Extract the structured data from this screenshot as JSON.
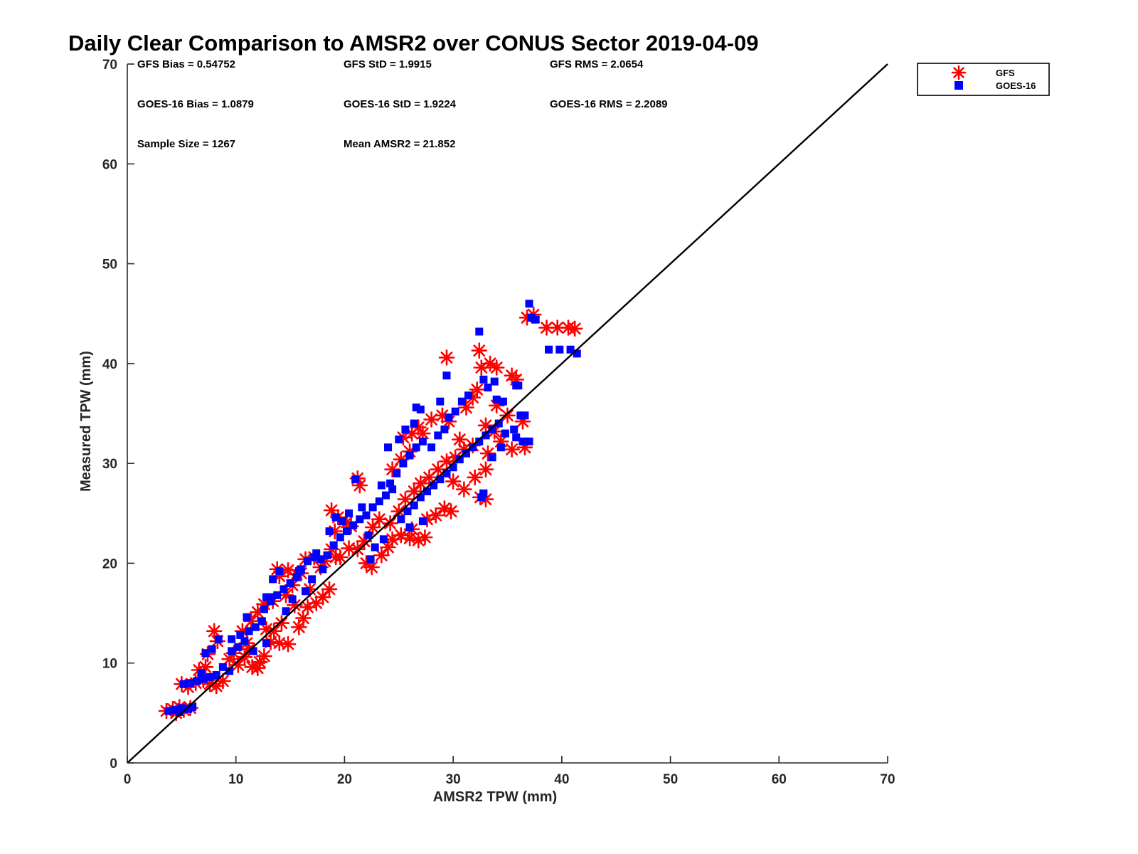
{
  "chart_data": {
    "type": "scatter",
    "title": "Daily Clear Comparison to AMSR2 over CONUS Sector 2019-04-09",
    "xlabel": "AMSR2 TPW (mm)",
    "ylabel": "Measured TPW (mm)",
    "xlim": [
      0,
      70
    ],
    "ylim": [
      0,
      70
    ],
    "xticks": [
      "0",
      "10",
      "20",
      "30",
      "40",
      "50",
      "60",
      "70"
    ],
    "yticks": [
      "0",
      "10",
      "20",
      "30",
      "40",
      "50",
      "60",
      "70"
    ],
    "grid": false,
    "legend_position": "outside-top-right",
    "reference_line": {
      "from": [
        0,
        0
      ],
      "to": [
        70,
        70
      ]
    },
    "stats": [
      [
        "GFS Bias = 0.54752",
        "GFS StD = 1.9915",
        "GFS RMS = 2.0654"
      ],
      [
        "GOES-16 Bias = 1.0879",
        "GOES-16 StD = 1.9224",
        "GOES-16 RMS = 2.2089"
      ],
      [
        "Sample Size = 1267",
        "Mean AMSR2 = 21.852"
      ]
    ],
    "series": [
      {
        "name": "GFS",
        "marker": "asterisk",
        "color": "#ff0000",
        "points": [
          [
            3.6,
            5.2
          ],
          [
            4.2,
            5.4
          ],
          [
            4.8,
            5.6
          ],
          [
            5.2,
            5.3
          ],
          [
            5.8,
            5.5
          ],
          [
            4.5,
            5.0
          ],
          [
            5.0,
            7.9
          ],
          [
            5.6,
            7.6
          ],
          [
            6.3,
            8.0
          ],
          [
            7.0,
            8.3
          ],
          [
            7.6,
            7.9
          ],
          [
            8.2,
            7.7
          ],
          [
            8.8,
            8.2
          ],
          [
            6.6,
            9.3
          ],
          [
            7.2,
            9.6
          ],
          [
            8.0,
            13.2
          ],
          [
            8.3,
            12.2
          ],
          [
            7.4,
            10.9
          ],
          [
            9.4,
            10.4
          ],
          [
            10.2,
            9.8
          ],
          [
            10.8,
            10.6
          ],
          [
            11.5,
            9.6
          ],
          [
            12.0,
            9.5
          ],
          [
            12.6,
            10.7
          ],
          [
            11.2,
            11.4
          ],
          [
            12.2,
            10.1
          ],
          [
            13.2,
            12.1
          ],
          [
            14.0,
            12.0
          ],
          [
            14.8,
            11.9
          ],
          [
            13.5,
            13.2
          ],
          [
            14.2,
            14.0
          ],
          [
            15.8,
            13.6
          ],
          [
            16.2,
            14.5
          ],
          [
            10.6,
            13.2
          ],
          [
            11.4,
            14.2
          ],
          [
            12.0,
            15.1
          ],
          [
            12.6,
            15.9
          ],
          [
            13.4,
            16.2
          ],
          [
            14.6,
            16.8
          ],
          [
            15.4,
            15.8
          ],
          [
            16.6,
            15.6
          ],
          [
            17.4,
            16.0
          ],
          [
            18.0,
            16.6
          ],
          [
            18.6,
            17.4
          ],
          [
            14.0,
            18.7
          ],
          [
            14.8,
            19.3
          ],
          [
            15.6,
            18.9
          ],
          [
            16.4,
            20.4
          ],
          [
            17.2,
            20.6
          ],
          [
            18.2,
            20.2
          ],
          [
            19.2,
            20.6
          ],
          [
            13.8,
            19.4
          ],
          [
            15.2,
            17.8
          ],
          [
            16.8,
            17.4
          ],
          [
            18.8,
            21.4
          ],
          [
            19.6,
            20.6
          ],
          [
            20.4,
            21.5
          ],
          [
            21.2,
            21.4
          ],
          [
            22.0,
            20.0
          ],
          [
            22.5,
            19.6
          ],
          [
            23.4,
            20.8
          ],
          [
            24.0,
            21.6
          ],
          [
            18.8,
            25.3
          ],
          [
            19.4,
            24.6
          ],
          [
            20.2,
            24.1
          ],
          [
            19.1,
            23.2
          ],
          [
            20.6,
            23.7
          ],
          [
            21.2,
            28.5
          ],
          [
            21.4,
            27.8
          ],
          [
            24.4,
            22.4
          ],
          [
            25.2,
            22.8
          ],
          [
            26.0,
            22.5
          ],
          [
            26.8,
            22.3
          ],
          [
            27.4,
            22.6
          ],
          [
            26.2,
            23.4
          ],
          [
            27.6,
            24.4
          ],
          [
            28.4,
            24.8
          ],
          [
            29.2,
            25.5
          ],
          [
            29.8,
            25.2
          ],
          [
            24.2,
            24.0
          ],
          [
            25.0,
            25.2
          ],
          [
            25.6,
            26.4
          ],
          [
            26.4,
            27.2
          ],
          [
            27.0,
            28.0
          ],
          [
            27.8,
            28.6
          ],
          [
            28.6,
            29.4
          ],
          [
            29.4,
            30.2
          ],
          [
            30.2,
            30.6
          ],
          [
            31.0,
            31.4
          ],
          [
            24.4,
            29.4
          ],
          [
            25.2,
            30.4
          ],
          [
            26.0,
            31.2
          ],
          [
            25.4,
            32.6
          ],
          [
            26.2,
            33.0
          ],
          [
            26.8,
            33.6
          ],
          [
            27.2,
            33.0
          ],
          [
            28.0,
            34.4
          ],
          [
            29.0,
            34.8
          ],
          [
            29.6,
            34.2
          ],
          [
            30.0,
            28.2
          ],
          [
            31.0,
            27.4
          ],
          [
            32.0,
            28.6
          ],
          [
            33.0,
            29.4
          ],
          [
            32.5,
            26.6
          ],
          [
            33.0,
            26.4
          ],
          [
            31.2,
            35.6
          ],
          [
            31.8,
            36.6
          ],
          [
            32.2,
            37.4
          ],
          [
            32.6,
            39.6
          ],
          [
            33.4,
            40.0
          ],
          [
            34.0,
            39.6
          ],
          [
            32.4,
            41.3
          ],
          [
            29.4,
            40.6
          ],
          [
            33.0,
            33.8
          ],
          [
            33.8,
            33.2
          ],
          [
            34.4,
            32.2
          ],
          [
            35.4,
            31.4
          ],
          [
            36.6,
            31.6
          ],
          [
            35.4,
            38.8
          ],
          [
            35.8,
            38.4
          ],
          [
            36.4,
            34.2
          ],
          [
            35.0,
            34.8
          ],
          [
            34.0,
            35.8
          ],
          [
            30.6,
            32.4
          ],
          [
            31.8,
            31.8
          ],
          [
            33.2,
            31.0
          ],
          [
            36.8,
            44.6
          ],
          [
            37.4,
            44.9
          ],
          [
            38.6,
            43.6
          ],
          [
            39.6,
            43.6
          ],
          [
            40.6,
            43.6
          ],
          [
            41.2,
            43.5
          ],
          [
            22.6,
            23.6
          ],
          [
            23.2,
            24.4
          ],
          [
            21.8,
            22.2
          ],
          [
            17.8,
            19.6
          ],
          [
            16.0,
            19.0
          ],
          [
            12.8,
            13.4
          ],
          [
            11.0,
            12.0
          ],
          [
            9.8,
            11.0
          ]
        ]
      },
      {
        "name": "GOES-16",
        "marker": "square",
        "color": "#0000ff",
        "points": [
          [
            3.8,
            5.2
          ],
          [
            4.4,
            5.3
          ],
          [
            5.0,
            5.5
          ],
          [
            5.6,
            5.4
          ],
          [
            6.0,
            5.6
          ],
          [
            4.8,
            5.1
          ],
          [
            5.2,
            7.9
          ],
          [
            5.8,
            8.0
          ],
          [
            6.4,
            8.2
          ],
          [
            7.0,
            8.4
          ],
          [
            7.6,
            8.6
          ],
          [
            8.2,
            8.8
          ],
          [
            6.8,
            9.0
          ],
          [
            7.2,
            11.0
          ],
          [
            7.8,
            11.4
          ],
          [
            8.4,
            12.4
          ],
          [
            8.8,
            9.6
          ],
          [
            9.4,
            9.2
          ],
          [
            9.6,
            11.2
          ],
          [
            10.2,
            11.6
          ],
          [
            10.8,
            12.2
          ],
          [
            11.2,
            13.2
          ],
          [
            11.8,
            13.6
          ],
          [
            12.4,
            14.2
          ],
          [
            10.4,
            12.8
          ],
          [
            11.6,
            11.2
          ],
          [
            12.8,
            12.0
          ],
          [
            12.6,
            15.4
          ],
          [
            13.2,
            16.2
          ],
          [
            13.8,
            16.8
          ],
          [
            14.4,
            17.4
          ],
          [
            15.0,
            18.0
          ],
          [
            15.6,
            18.6
          ],
          [
            14.0,
            19.2
          ],
          [
            13.4,
            18.4
          ],
          [
            12.8,
            16.6
          ],
          [
            16.0,
            19.4
          ],
          [
            16.6,
            20.2
          ],
          [
            17.2,
            20.6
          ],
          [
            17.8,
            20.4
          ],
          [
            18.4,
            20.8
          ],
          [
            16.4,
            17.2
          ],
          [
            17.0,
            18.4
          ],
          [
            18.0,
            19.4
          ],
          [
            15.2,
            16.4
          ],
          [
            14.6,
            15.2
          ],
          [
            19.0,
            21.8
          ],
          [
            19.6,
            22.6
          ],
          [
            20.2,
            23.2
          ],
          [
            20.8,
            23.8
          ],
          [
            21.4,
            24.4
          ],
          [
            19.2,
            24.6
          ],
          [
            19.8,
            24.2
          ],
          [
            21.0,
            28.4
          ],
          [
            20.4,
            25.0
          ],
          [
            22.0,
            24.8
          ],
          [
            22.6,
            25.6
          ],
          [
            23.2,
            26.2
          ],
          [
            23.8,
            26.8
          ],
          [
            24.4,
            27.4
          ],
          [
            22.2,
            22.8
          ],
          [
            22.8,
            21.6
          ],
          [
            23.6,
            22.4
          ],
          [
            22.4,
            20.4
          ],
          [
            24.2,
            28.0
          ],
          [
            24.8,
            29.0
          ],
          [
            25.4,
            30.0
          ],
          [
            26.0,
            30.8
          ],
          [
            26.6,
            31.6
          ],
          [
            27.2,
            32.2
          ],
          [
            25.0,
            32.4
          ],
          [
            25.6,
            33.4
          ],
          [
            26.4,
            34.0
          ],
          [
            26.6,
            35.6
          ],
          [
            27.0,
            35.4
          ],
          [
            25.2,
            24.4
          ],
          [
            25.8,
            25.2
          ],
          [
            26.4,
            25.8
          ],
          [
            27.0,
            26.6
          ],
          [
            27.6,
            27.2
          ],
          [
            28.2,
            27.8
          ],
          [
            28.8,
            28.4
          ],
          [
            29.4,
            29.0
          ],
          [
            26.0,
            23.6
          ],
          [
            27.2,
            24.2
          ],
          [
            28.0,
            31.6
          ],
          [
            28.6,
            32.8
          ],
          [
            29.2,
            33.4
          ],
          [
            29.6,
            34.6
          ],
          [
            30.2,
            35.2
          ],
          [
            30.8,
            36.2
          ],
          [
            31.4,
            36.8
          ],
          [
            28.8,
            36.2
          ],
          [
            29.4,
            38.8
          ],
          [
            30.0,
            29.6
          ],
          [
            30.6,
            30.4
          ],
          [
            31.2,
            31.0
          ],
          [
            31.8,
            31.6
          ],
          [
            32.4,
            32.2
          ],
          [
            33.0,
            32.8
          ],
          [
            33.6,
            33.4
          ],
          [
            34.2,
            34.0
          ],
          [
            32.6,
            26.6
          ],
          [
            32.8,
            27.0
          ],
          [
            32.4,
            43.2
          ],
          [
            32.8,
            38.4
          ],
          [
            33.2,
            37.6
          ],
          [
            33.8,
            38.2
          ],
          [
            34.0,
            36.4
          ],
          [
            34.6,
            36.2
          ],
          [
            35.8,
            37.8
          ],
          [
            36.0,
            37.8
          ],
          [
            34.8,
            33.0
          ],
          [
            35.6,
            33.4
          ],
          [
            36.2,
            34.8
          ],
          [
            36.6,
            34.8
          ],
          [
            35.8,
            32.6
          ],
          [
            36.4,
            32.2
          ],
          [
            37.0,
            32.2
          ],
          [
            34.4,
            31.6
          ],
          [
            33.6,
            30.6
          ],
          [
            37.0,
            46.0
          ],
          [
            37.2,
            44.6
          ],
          [
            37.6,
            44.4
          ],
          [
            38.8,
            41.4
          ],
          [
            39.8,
            41.4
          ],
          [
            40.8,
            41.4
          ],
          [
            41.4,
            41.0
          ],
          [
            24.0,
            31.6
          ],
          [
            23.4,
            27.8
          ],
          [
            21.6,
            25.6
          ],
          [
            18.6,
            23.2
          ],
          [
            17.4,
            21.0
          ],
          [
            15.8,
            19.2
          ],
          [
            13.2,
            16.6
          ],
          [
            11.0,
            14.6
          ],
          [
            9.6,
            12.4
          ]
        ]
      }
    ]
  }
}
